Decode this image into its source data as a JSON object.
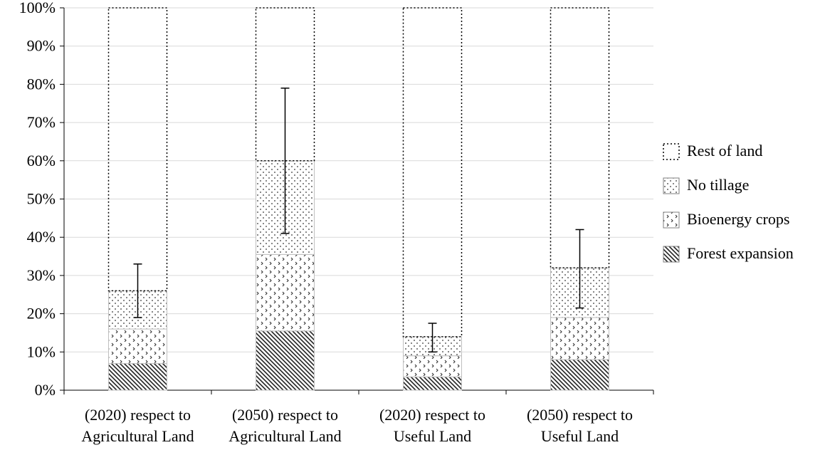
{
  "chart_data": {
    "type": "bar",
    "stacked": true,
    "title": "",
    "xlabel": "",
    "ylabel": "",
    "ylim": [
      0,
      100
    ],
    "y_ticks": [
      "0%",
      "10%",
      "20%",
      "30%",
      "40%",
      "50%",
      "60%",
      "70%",
      "80%",
      "90%",
      "100%"
    ],
    "grid": true,
    "legend_position": "right",
    "categories": [
      [
        "(2020) respect to",
        "Agricultural Land"
      ],
      [
        "(2050) respect to",
        "Agricultural Land"
      ],
      [
        "(2020) respect to",
        "Useful Land"
      ],
      [
        "(2050) respect to",
        "Useful Land"
      ]
    ],
    "series": [
      {
        "name": "Forest expansion",
        "pattern": "diagonal-hatch",
        "values": [
          7,
          15.5,
          3.5,
          8
        ]
      },
      {
        "name": "Bioenergy crops",
        "pattern": "chevron-dots",
        "values": [
          9,
          20,
          5.5,
          11
        ]
      },
      {
        "name": "No tillage",
        "pattern": "dots",
        "values": [
          10,
          24.5,
          5,
          13
        ]
      },
      {
        "name": "Rest of land",
        "pattern": "dotted-outline",
        "values": [
          74,
          40,
          86,
          68
        ]
      }
    ],
    "error_bars": [
      {
        "center": 26,
        "low": 19,
        "high": 33
      },
      {
        "center": 60,
        "low": 41,
        "high": 79
      },
      {
        "center": 14,
        "low": 10,
        "high": 17.5
      },
      {
        "center": 32,
        "low": 21.5,
        "high": 42
      }
    ],
    "legend_order": [
      "Rest of land",
      "No tillage",
      "Bioenergy crops",
      "Forest expansion"
    ]
  }
}
